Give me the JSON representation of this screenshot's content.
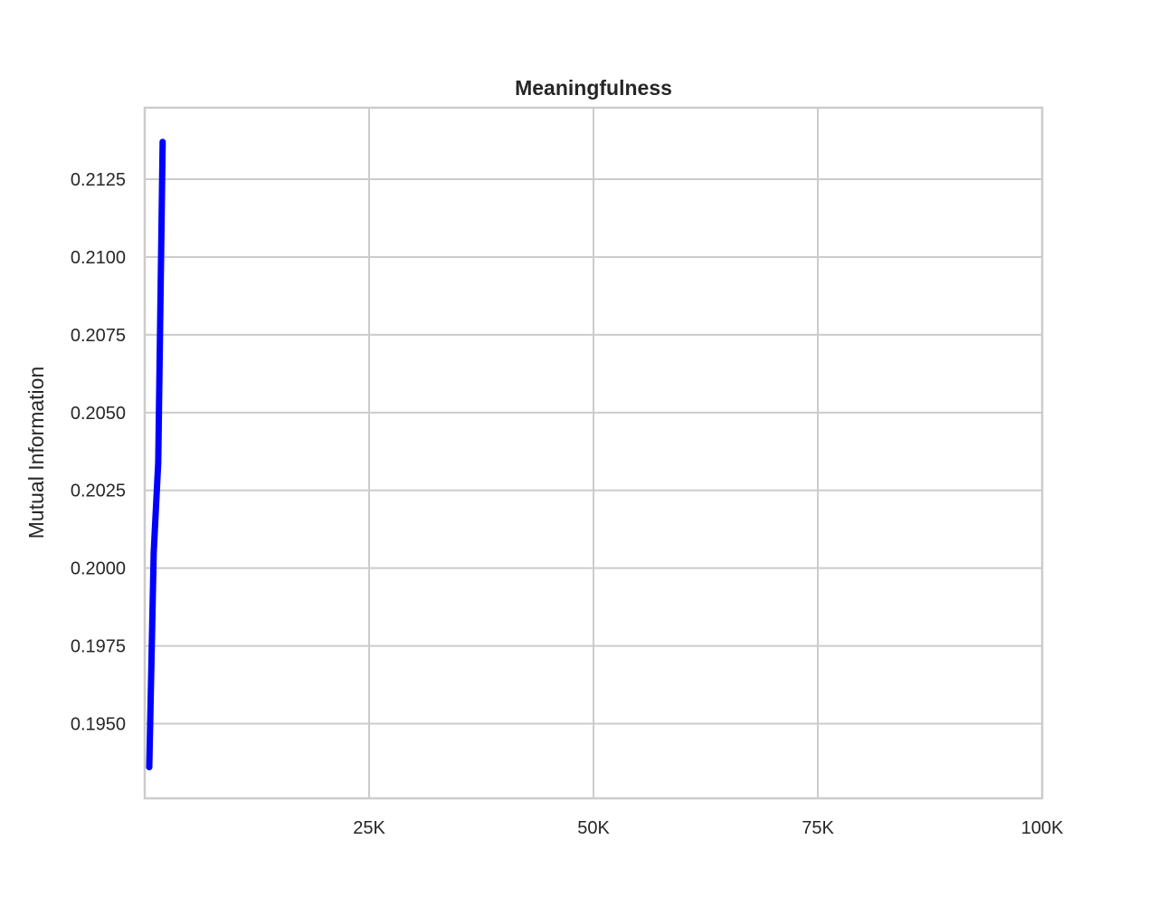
{
  "chart_data": {
    "type": "line",
    "title": "Meaningfulness",
    "xlabel": "",
    "ylabel": "Mutual Information",
    "xlim": [
      0,
      100000
    ],
    "ylim": [
      0.1926,
      0.2148
    ],
    "x_ticks": [
      25000,
      50000,
      75000,
      100000
    ],
    "x_tick_labels": [
      "25K",
      "50K",
      "75K",
      "100K"
    ],
    "y_ticks": [
      0.195,
      0.1975,
      0.2,
      0.2025,
      0.205,
      0.2075,
      0.21,
      0.2125
    ],
    "y_tick_labels": [
      "0.1950",
      "0.1975",
      "0.2000",
      "0.2025",
      "0.2050",
      "0.2075",
      "0.2100",
      "0.2125"
    ],
    "grid": true,
    "series": [
      {
        "color": "#0000ff",
        "x": [
          500,
          1000,
          1500,
          2000
        ],
        "y": [
          0.1936,
          0.2005,
          0.2034,
          0.2137
        ]
      }
    ]
  }
}
